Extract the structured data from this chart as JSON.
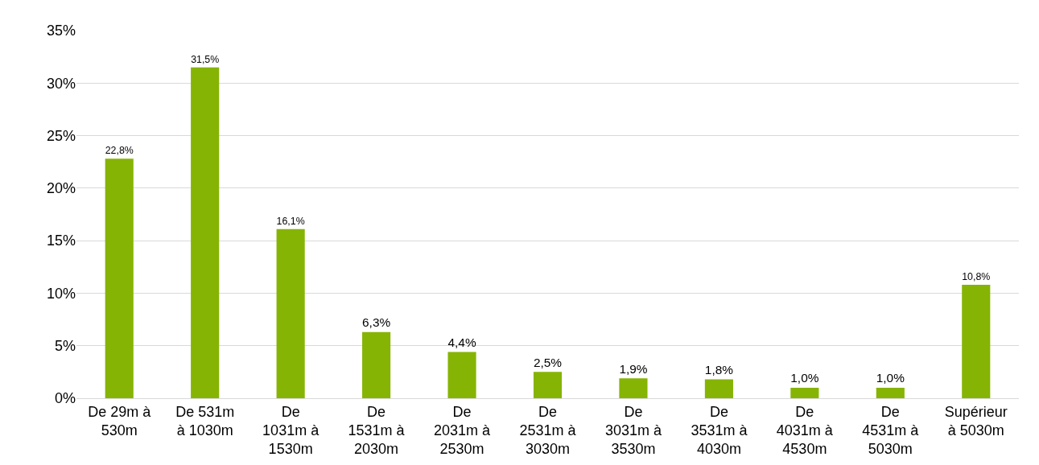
{
  "chart_data": {
    "type": "bar",
    "categories": [
      "De 29m à\n530m",
      "De 531m\nà 1030m",
      "De\n1031m à\n1530m",
      "De\n1531m à\n2030m",
      "De\n2031m à\n2530m",
      "De\n2531m à\n3030m",
      "De\n3031m à\n3530m",
      "De\n3531m à\n4030m",
      "De\n4031m à\n4530m",
      "De\n4531m à\n5030m",
      "Supérieur\nà 5030m"
    ],
    "values": [
      22.8,
      31.5,
      16.1,
      6.3,
      4.4,
      2.5,
      1.9,
      1.8,
      1.0,
      1.0,
      10.8
    ],
    "value_labels": [
      "22,8%",
      "31,5%",
      "16,1%",
      "6,3%",
      "4,4%",
      "2,5%",
      "1,9%",
      "1,8%",
      "1,0%",
      "1,0%",
      "10,8%"
    ],
    "color": "#86b404",
    "ylim": [
      0,
      35
    ],
    "yticks": [
      {
        "value": 0,
        "label": "0%"
      },
      {
        "value": 5,
        "label": "5%"
      },
      {
        "value": 10,
        "label": "10%"
      },
      {
        "value": 15,
        "label": "15%"
      },
      {
        "value": 20,
        "label": "20%"
      },
      {
        "value": 25,
        "label": "25%"
      },
      {
        "value": 30,
        "label": "30%"
      },
      {
        "value": 35,
        "label": "35%"
      }
    ],
    "grid": "y",
    "legend": false
  }
}
